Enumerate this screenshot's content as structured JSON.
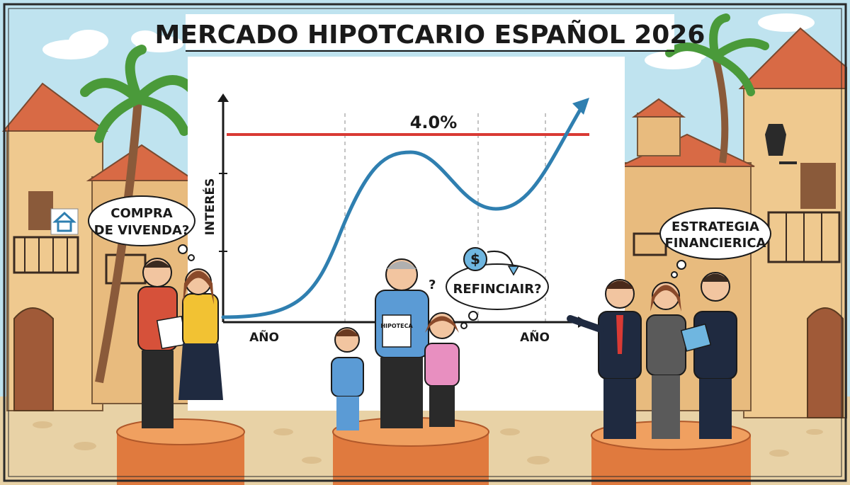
{
  "title": "MERCADO HIPOTCARIO ESPAÑOL 2026",
  "chart_data": {
    "type": "line",
    "title": "MERCADO HIPOTCARIO ESPAÑOL 2026",
    "ylabel": "INTERÉS",
    "xlabels": [
      "AÑO",
      "AÑO"
    ],
    "reference_line": {
      "label": "4.0%",
      "value": 4.0,
      "color": "#d93a34"
    },
    "series": [
      {
        "color": "#2f7fb0"
      }
    ]
  },
  "bubbles": {
    "left": {
      "line1": "COMPRA",
      "line2": "DE VIVENDA?"
    },
    "middle": {
      "line1": "REFINCIAIR?",
      "icon": "dollar-refinance-icon"
    },
    "right": {
      "line1": "ESTRATEGIA",
      "line2": "FINANCIERICA"
    }
  },
  "paper_text": "HIPOTECA",
  "icons": [
    "house-icon",
    "dollar-refinance-icon",
    "street-lamp-icon",
    "palm-tree-icon"
  ],
  "colors": {
    "accent_red": "#d93a34",
    "curve_blue": "#2f7fb0",
    "roof": "#d86a45",
    "wall": "#efc98f",
    "sky": "#bfe3ef",
    "ground": "#e8d2a6"
  }
}
